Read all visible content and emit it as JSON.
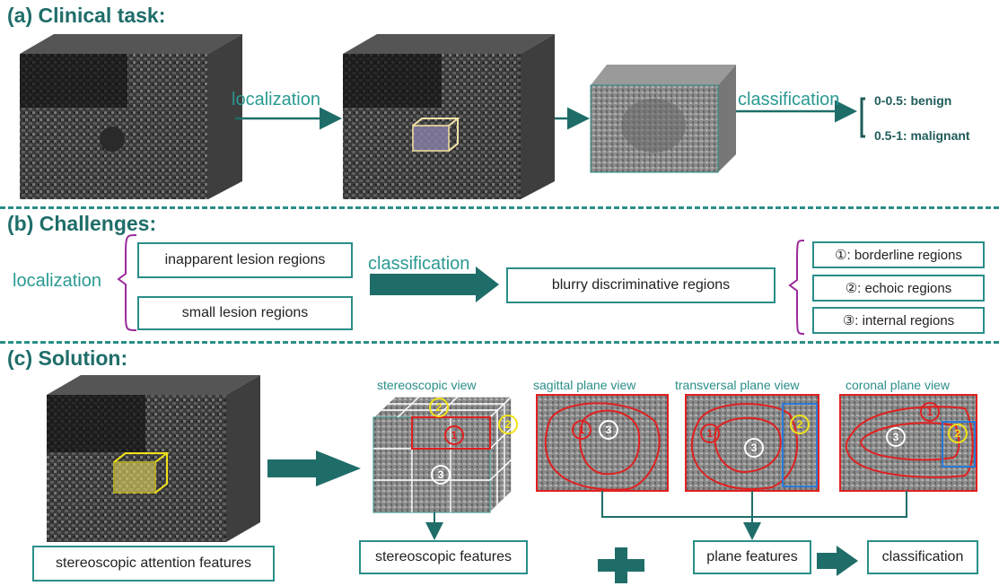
{
  "panel_a": {
    "title": "(a) Clinical task:",
    "localization": "localization",
    "classification": "classification",
    "benign": "0-0.5: benign",
    "malignant": "0.5-1: malignant"
  },
  "panel_b": {
    "title": "(b) Challenges:",
    "localization": "localization",
    "classification": "classification",
    "inapparent": "inapparent lesion regions",
    "small": "small lesion regions",
    "blurry": "blurry discriminative regions",
    "borderline": "①: borderline regions",
    "echoic": "②: echoic regions",
    "internal": "③: internal regions"
  },
  "panel_c": {
    "title": "(c) Solution:",
    "stereo_view": "stereoscopic view",
    "sagittal": "sagittal plane view",
    "transversal": "transversal plane view",
    "coronal": "coronal plane view",
    "stereo_attention": "stereoscopic attention features",
    "stereo_features": "stereoscopic features",
    "plane_features": "plane features",
    "classification": "classification",
    "m1": "1",
    "m2": "2",
    "m3": "3"
  },
  "colors": {
    "teal": "#1f6d69",
    "accent": "#2a8e88",
    "red": "#e02020",
    "yellow": "#f2e21a",
    "blue": "#2a7ad8"
  }
}
